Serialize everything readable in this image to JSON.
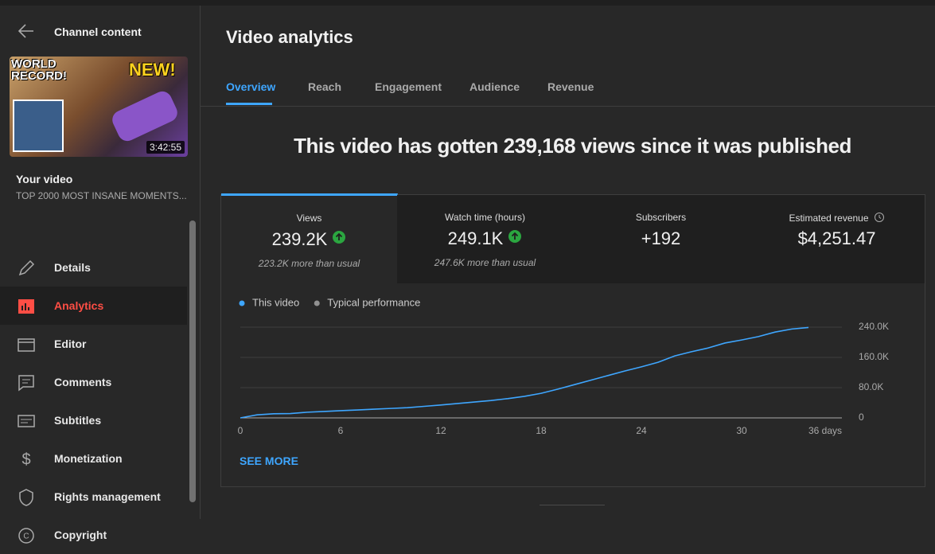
{
  "sidebar": {
    "back_label": "Channel content",
    "thumbnail": {
      "badge_line1": "WORLD",
      "badge_line2": "RECORD!",
      "sticker": "NEW!",
      "duration": "3:42:55"
    },
    "your_video": "Your video",
    "video_title": "TOP 2000 MOST INSANE MOMENTS...",
    "nav": [
      {
        "label": "Details"
      },
      {
        "label": "Analytics",
        "active": true
      },
      {
        "label": "Editor"
      },
      {
        "label": "Comments"
      },
      {
        "label": "Subtitles"
      },
      {
        "label": "Monetization"
      },
      {
        "label": "Rights management"
      },
      {
        "label": "Copyright"
      }
    ]
  },
  "header": {
    "title": "Video analytics"
  },
  "tabs": [
    "Overview",
    "Reach",
    "Engagement",
    "Audience",
    "Revenue"
  ],
  "headline": "This video has gotten 239,168 views since it was published",
  "metrics": [
    {
      "label": "Views",
      "value": "239.2K",
      "note": "223.2K more than usual"
    },
    {
      "label": "Watch time (hours)",
      "value": "249.1K",
      "note": "247.6K more than usual"
    },
    {
      "label": "Subscribers",
      "value": "+192"
    },
    {
      "label": "Estimated revenue",
      "value": "$4,251.47"
    }
  ],
  "chart_data": {
    "type": "line",
    "x": [
      0,
      1,
      2,
      3,
      4,
      5,
      6,
      7,
      8,
      9,
      10,
      11,
      12,
      13,
      14,
      15,
      16,
      17,
      18,
      19,
      20,
      21,
      22,
      23,
      24,
      25,
      26,
      27,
      28,
      29,
      30,
      31,
      32,
      33,
      34
    ],
    "series": [
      {
        "name": "This video",
        "color": "#3ea6ff",
        "values": [
          0,
          8000,
          11000,
          11500,
          15000,
          17000,
          19000,
          21000,
          23000,
          25000,
          27000,
          30500,
          34000,
          38000,
          42000,
          46000,
          51000,
          57000,
          65000,
          76000,
          88000,
          100000,
          112000,
          124000,
          135000,
          147000,
          164000,
          175000,
          185000,
          198000,
          206000,
          215000,
          227000,
          235000,
          239168
        ]
      }
    ],
    "other_legend_entries": [
      {
        "name": "Typical performance",
        "color": "#909090"
      }
    ],
    "xlim": [
      0,
      36
    ],
    "xticks": [
      0,
      6,
      12,
      18,
      24,
      30,
      {
        "value": 36,
        "label": "36 days"
      }
    ],
    "ylim": [
      0,
      240000
    ],
    "yticks": [
      0,
      {
        "value": 80000,
        "label": "80.0K"
      },
      {
        "value": 160000,
        "label": "160.0K"
      },
      {
        "value": 240000,
        "label": "240.0K"
      }
    ],
    "grid": true
  },
  "see_more": "SEE MORE"
}
